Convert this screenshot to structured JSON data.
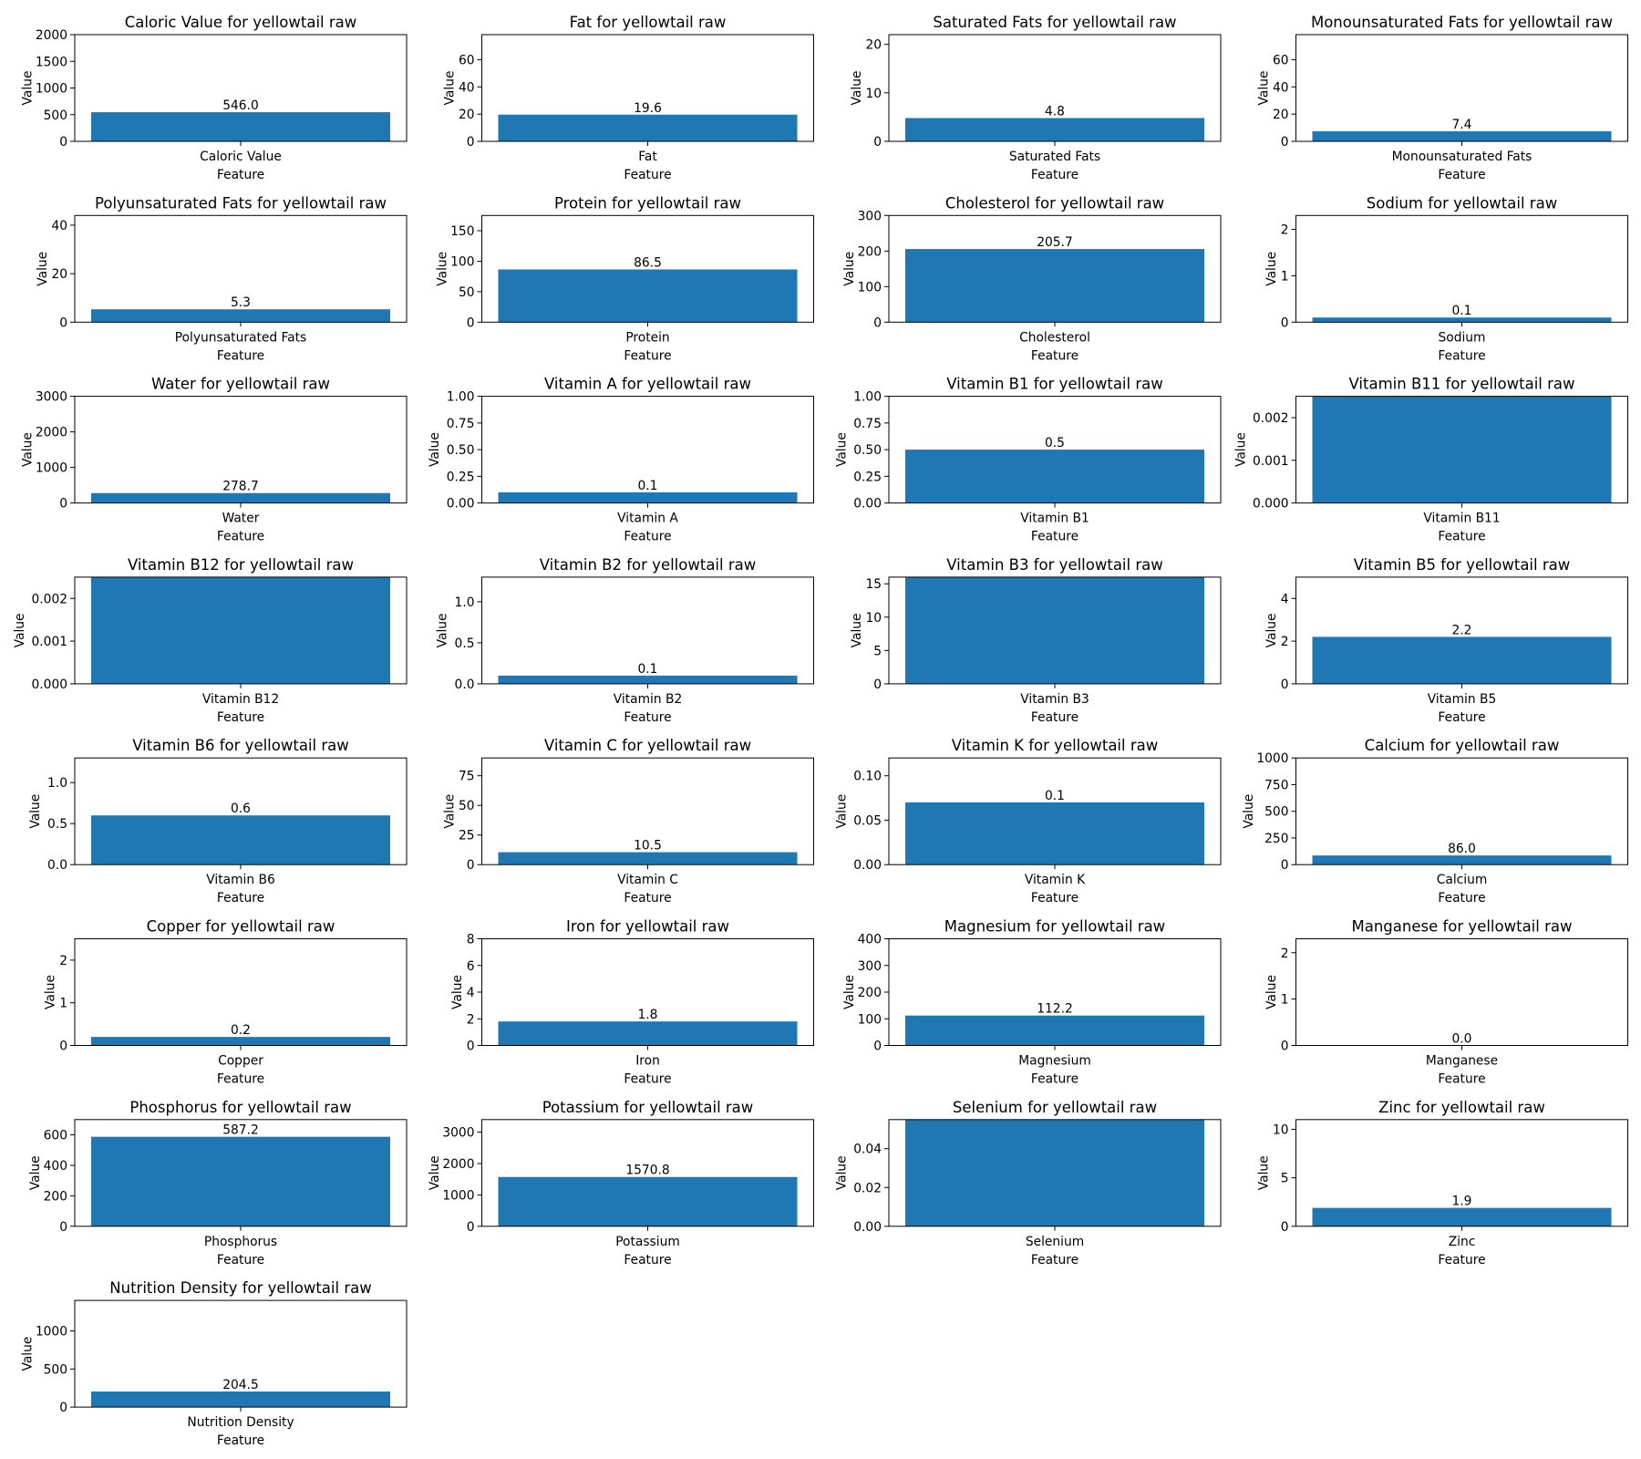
{
  "style": {
    "bar_color": "#1f77b4",
    "axes_color": "#000000",
    "background": "#ffffff"
  },
  "layout": {
    "grid_cols": 4,
    "grid": false,
    "legend": "none"
  },
  "chart_data": [
    {
      "type": "bar",
      "title": "Caloric Value for yellowtail raw",
      "xlabel": "Feature",
      "ylabel": "Value",
      "categories": [
        "Caloric Value"
      ],
      "values": [
        546.0
      ],
      "value_labels": [
        "546.0"
      ],
      "ylim": [
        0,
        2000
      ],
      "yticks": [
        "0",
        "500",
        "1000",
        "1500",
        "2000"
      ]
    },
    {
      "type": "bar",
      "title": "Fat for yellowtail raw",
      "xlabel": "Feature",
      "ylabel": "Value",
      "categories": [
        "Fat"
      ],
      "values": [
        19.6
      ],
      "value_labels": [
        "19.6"
      ],
      "ylim": [
        0,
        78.4
      ],
      "yticks": [
        "0",
        "20",
        "40",
        "60"
      ]
    },
    {
      "type": "bar",
      "title": "Saturated Fats for yellowtail raw",
      "xlabel": "Feature",
      "ylabel": "Value",
      "categories": [
        "Saturated Fats"
      ],
      "values": [
        4.8
      ],
      "value_labels": [
        "4.8"
      ],
      "ylim": [
        0,
        22
      ],
      "yticks": [
        "0",
        "10",
        "20"
      ]
    },
    {
      "type": "bar",
      "title": "Monounsaturated Fats for yellowtail raw",
      "xlabel": "Feature",
      "ylabel": "Value",
      "categories": [
        "Monounsaturated Fats"
      ],
      "values": [
        7.4
      ],
      "value_labels": [
        "7.4"
      ],
      "ylim": [
        0,
        78.4
      ],
      "yticks": [
        "0",
        "20",
        "40",
        "60"
      ]
    },
    {
      "type": "bar",
      "title": "Polyunsaturated Fats for yellowtail raw",
      "xlabel": "Feature",
      "ylabel": "Value",
      "categories": [
        "Polyunsaturated Fats"
      ],
      "values": [
        5.3
      ],
      "value_labels": [
        "5.3"
      ],
      "ylim": [
        0,
        44
      ],
      "yticks": [
        "0",
        "20",
        "40"
      ]
    },
    {
      "type": "bar",
      "title": "Protein for yellowtail raw",
      "xlabel": "Feature",
      "ylabel": "Value",
      "categories": [
        "Protein"
      ],
      "values": [
        86.5
      ],
      "value_labels": [
        "86.5"
      ],
      "ylim": [
        0,
        175
      ],
      "yticks": [
        "0",
        "50",
        "100",
        "150"
      ]
    },
    {
      "type": "bar",
      "title": "Cholesterol for yellowtail raw",
      "xlabel": "Feature",
      "ylabel": "Value",
      "categories": [
        "Cholesterol"
      ],
      "values": [
        205.7
      ],
      "value_labels": [
        "205.7"
      ],
      "ylim": [
        0,
        300
      ],
      "yticks": [
        "0",
        "100",
        "200",
        "300"
      ]
    },
    {
      "type": "bar",
      "title": "Sodium for yellowtail raw",
      "xlabel": "Feature",
      "ylabel": "Value",
      "categories": [
        "Sodium"
      ],
      "values": [
        0.1
      ],
      "value_labels": [
        "0.1"
      ],
      "ylim": [
        0,
        2.3
      ],
      "yticks": [
        "0",
        "1",
        "2"
      ]
    },
    {
      "type": "bar",
      "title": "Water for yellowtail raw",
      "xlabel": "Feature",
      "ylabel": "Value",
      "categories": [
        "Water"
      ],
      "values": [
        278.7
      ],
      "value_labels": [
        "278.7"
      ],
      "ylim": [
        0,
        3000
      ],
      "yticks": [
        "0",
        "1000",
        "2000",
        "3000"
      ]
    },
    {
      "type": "bar",
      "title": "Vitamin A for yellowtail raw",
      "xlabel": "Feature",
      "ylabel": "Value",
      "categories": [
        "Vitamin A"
      ],
      "values": [
        0.1
      ],
      "value_labels": [
        "0.1"
      ],
      "ylim": [
        0,
        1.0
      ],
      "yticks": [
        "0.00",
        "0.25",
        "0.50",
        "0.75",
        "1.00"
      ]
    },
    {
      "type": "bar",
      "title": "Vitamin B1 for yellowtail raw",
      "xlabel": "Feature",
      "ylabel": "Value",
      "categories": [
        "Vitamin B1"
      ],
      "values": [
        0.5
      ],
      "value_labels": [
        "0.5"
      ],
      "ylim": [
        0,
        1.0
      ],
      "yticks": [
        "0.00",
        "0.25",
        "0.50",
        "0.75",
        "1.00"
      ]
    },
    {
      "type": "bar",
      "title": "Vitamin B11 for yellowtail raw",
      "xlabel": "Feature",
      "ylabel": "Value",
      "categories": [
        "Vitamin B11"
      ],
      "values": [
        0.0025
      ],
      "value_labels": [
        ""
      ],
      "ylim": [
        0,
        0.0025
      ],
      "yticks": [
        "0.000",
        "0.001",
        "0.002"
      ]
    },
    {
      "type": "bar",
      "title": "Vitamin B12 for yellowtail raw",
      "xlabel": "Feature",
      "ylabel": "Value",
      "categories": [
        "Vitamin B12"
      ],
      "values": [
        0.0025
      ],
      "value_labels": [
        ""
      ],
      "ylim": [
        0,
        0.0025
      ],
      "yticks": [
        "0.000",
        "0.001",
        "0.002"
      ]
    },
    {
      "type": "bar",
      "title": "Vitamin B2 for yellowtail raw",
      "xlabel": "Feature",
      "ylabel": "Value",
      "categories": [
        "Vitamin B2"
      ],
      "values": [
        0.1
      ],
      "value_labels": [
        "0.1"
      ],
      "ylim": [
        0,
        1.3
      ],
      "yticks": [
        "0.0",
        "0.5",
        "1.0"
      ]
    },
    {
      "type": "bar",
      "title": "Vitamin B3 for yellowtail raw",
      "xlabel": "Feature",
      "ylabel": "Value",
      "categories": [
        "Vitamin B3"
      ],
      "values": [
        16
      ],
      "value_labels": [
        ""
      ],
      "ylim": [
        0,
        16
      ],
      "yticks": [
        "0",
        "5",
        "10",
        "15"
      ]
    },
    {
      "type": "bar",
      "title": "Vitamin B5 for yellowtail raw",
      "xlabel": "Feature",
      "ylabel": "Value",
      "categories": [
        "Vitamin B5"
      ],
      "values": [
        2.2
      ],
      "value_labels": [
        "2.2"
      ],
      "ylim": [
        0,
        5
      ],
      "yticks": [
        "0",
        "2",
        "4"
      ]
    },
    {
      "type": "bar",
      "title": "Vitamin B6 for yellowtail raw",
      "xlabel": "Feature",
      "ylabel": "Value",
      "categories": [
        "Vitamin B6"
      ],
      "values": [
        0.6
      ],
      "value_labels": [
        "0.6"
      ],
      "ylim": [
        0,
        1.3
      ],
      "yticks": [
        "0.0",
        "0.5",
        "1.0"
      ]
    },
    {
      "type": "bar",
      "title": "Vitamin C for yellowtail raw",
      "xlabel": "Feature",
      "ylabel": "Value",
      "categories": [
        "Vitamin C"
      ],
      "values": [
        10.5
      ],
      "value_labels": [
        "10.5"
      ],
      "ylim": [
        0,
        90
      ],
      "yticks": [
        "0",
        "25",
        "50",
        "75"
      ]
    },
    {
      "type": "bar",
      "title": "Vitamin K for yellowtail raw",
      "xlabel": "Feature",
      "ylabel": "Value",
      "categories": [
        "Vitamin K"
      ],
      "values": [
        0.07
      ],
      "value_labels": [
        "0.1"
      ],
      "ylim": [
        0,
        0.12
      ],
      "yticks": [
        "0.00",
        "0.05",
        "0.10"
      ]
    },
    {
      "type": "bar",
      "title": "Calcium for yellowtail raw",
      "xlabel": "Feature",
      "ylabel": "Value",
      "categories": [
        "Calcium"
      ],
      "values": [
        86.0
      ],
      "value_labels": [
        "86.0"
      ],
      "ylim": [
        0,
        1000
      ],
      "yticks": [
        "0",
        "250",
        "500",
        "750",
        "1000"
      ]
    },
    {
      "type": "bar",
      "title": "Copper for yellowtail raw",
      "xlabel": "Feature",
      "ylabel": "Value",
      "categories": [
        "Copper"
      ],
      "values": [
        0.2
      ],
      "value_labels": [
        "0.2"
      ],
      "ylim": [
        0,
        2.5
      ],
      "yticks": [
        "0",
        "1",
        "2"
      ]
    },
    {
      "type": "bar",
      "title": "Iron for yellowtail raw",
      "xlabel": "Feature",
      "ylabel": "Value",
      "categories": [
        "Iron"
      ],
      "values": [
        1.8
      ],
      "value_labels": [
        "1.8"
      ],
      "ylim": [
        0,
        8
      ],
      "yticks": [
        "0",
        "2",
        "4",
        "6",
        "8"
      ]
    },
    {
      "type": "bar",
      "title": "Magnesium for yellowtail raw",
      "xlabel": "Feature",
      "ylabel": "Value",
      "categories": [
        "Magnesium"
      ],
      "values": [
        112.2
      ],
      "value_labels": [
        "112.2"
      ],
      "ylim": [
        0,
        400
      ],
      "yticks": [
        "0",
        "100",
        "200",
        "300",
        "400"
      ]
    },
    {
      "type": "bar",
      "title": "Manganese for yellowtail raw",
      "xlabel": "Feature",
      "ylabel": "Value",
      "categories": [
        "Manganese"
      ],
      "values": [
        0.0
      ],
      "value_labels": [
        "0.0"
      ],
      "ylim": [
        0,
        2.3
      ],
      "yticks": [
        "0",
        "1",
        "2"
      ]
    },
    {
      "type": "bar",
      "title": "Phosphorus for yellowtail raw",
      "xlabel": "Feature",
      "ylabel": "Value",
      "categories": [
        "Phosphorus"
      ],
      "values": [
        587.2
      ],
      "value_labels": [
        "587.2"
      ],
      "ylim": [
        0,
        700
      ],
      "yticks": [
        "0",
        "200",
        "400",
        "600"
      ]
    },
    {
      "type": "bar",
      "title": "Potassium for yellowtail raw",
      "xlabel": "Feature",
      "ylabel": "Value",
      "categories": [
        "Potassium"
      ],
      "values": [
        1570.8
      ],
      "value_labels": [
        "1570.8"
      ],
      "ylim": [
        0,
        3400
      ],
      "yticks": [
        "0",
        "1000",
        "2000",
        "3000"
      ]
    },
    {
      "type": "bar",
      "title": "Selenium for yellowtail raw",
      "xlabel": "Feature",
      "ylabel": "Value",
      "categories": [
        "Selenium"
      ],
      "values": [
        0.055
      ],
      "value_labels": [
        ""
      ],
      "ylim": [
        0,
        0.055
      ],
      "yticks": [
        "0.00",
        "0.02",
        "0.04"
      ]
    },
    {
      "type": "bar",
      "title": "Zinc for yellowtail raw",
      "xlabel": "Feature",
      "ylabel": "Value",
      "categories": [
        "Zinc"
      ],
      "values": [
        1.9
      ],
      "value_labels": [
        "1.9"
      ],
      "ylim": [
        0,
        11
      ],
      "yticks": [
        "0",
        "5",
        "10"
      ]
    },
    {
      "type": "bar",
      "title": "Nutrition Density for yellowtail raw",
      "xlabel": "Feature",
      "ylabel": "Value",
      "categories": [
        "Nutrition Density"
      ],
      "values": [
        204.5
      ],
      "value_labels": [
        "204.5"
      ],
      "ylim": [
        0,
        1400
      ],
      "yticks": [
        "0",
        "500",
        "1000"
      ]
    }
  ]
}
